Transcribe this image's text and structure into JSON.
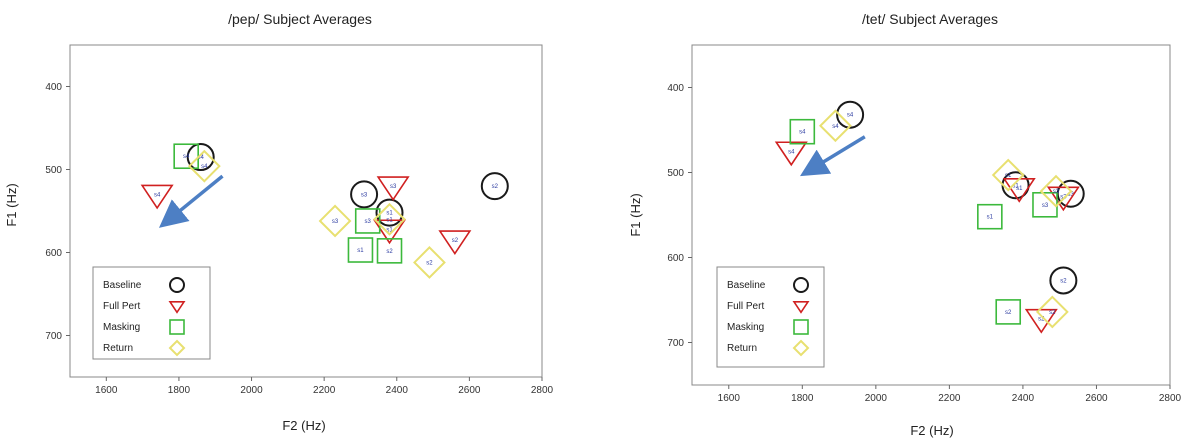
{
  "colors": {
    "baseline": "#1a1a1a",
    "full_pert": "#d02020",
    "masking": "#3cb93c",
    "return": "#e8e070",
    "arrow": "#4d7fc4",
    "label_text": "#2a3aa0"
  },
  "chart_data": [
    {
      "type": "scatter",
      "title": "/pep/ Subject Averages",
      "xlabel": "F2 (Hz)",
      "ylabel": "F1 (Hz)",
      "xlim": [
        1500,
        2800
      ],
      "ylim": [
        750,
        350
      ],
      "y_inverted": true,
      "xticks": [
        1600,
        1800,
        2000,
        2200,
        2400,
        2600,
        2800
      ],
      "yticks": [
        400,
        500,
        600,
        700
      ],
      "grid": false,
      "legend_position": "bottom-left",
      "arrow": {
        "from": [
          1920,
          508
        ],
        "to": [
          1760,
          565
        ]
      },
      "series": [
        {
          "name": "Baseline",
          "marker": "circle",
          "points": [
            {
              "x": 1860,
              "y": 485,
              "label": "s4"
            },
            {
              "x": 2310,
              "y": 530,
              "label": "s3"
            },
            {
              "x": 2380,
              "y": 552,
              "label": "s1"
            },
            {
              "x": 2670,
              "y": 520,
              "label": "s2"
            }
          ]
        },
        {
          "name": "Full Pert",
          "marker": "triangle-down",
          "points": [
            {
              "x": 1740,
              "y": 530,
              "label": "s4"
            },
            {
              "x": 2390,
              "y": 520,
              "label": "s3"
            },
            {
              "x": 2380,
              "y": 572,
              "label": "s1"
            },
            {
              "x": 2560,
              "y": 585,
              "label": "s2"
            }
          ]
        },
        {
          "name": "Masking",
          "marker": "square",
          "points": [
            {
              "x": 1820,
              "y": 484,
              "label": "s4"
            },
            {
              "x": 2320,
              "y": 562,
              "label": "s3"
            },
            {
              "x": 2300,
              "y": 597,
              "label": "s1"
            },
            {
              "x": 2380,
              "y": 598,
              "label": "s2"
            }
          ]
        },
        {
          "name": "Return",
          "marker": "diamond",
          "points": [
            {
              "x": 1870,
              "y": 496,
              "label": "s4"
            },
            {
              "x": 2230,
              "y": 562,
              "label": "s3"
            },
            {
              "x": 2380,
              "y": 560,
              "label": "s1"
            },
            {
              "x": 2490,
              "y": 612,
              "label": "s2"
            }
          ]
        }
      ]
    },
    {
      "type": "scatter",
      "title": "/tet/ Subject Averages",
      "xlabel": "F2 (Hz)",
      "ylabel": "F1 (Hz)",
      "xlim": [
        1500,
        2800
      ],
      "ylim": [
        750,
        350
      ],
      "y_inverted": true,
      "xticks": [
        1600,
        1800,
        2000,
        2200,
        2400,
        2600,
        2800
      ],
      "yticks": [
        400,
        500,
        600,
        700
      ],
      "grid": false,
      "legend_position": "bottom-left",
      "arrow": {
        "from": [
          1970,
          458
        ],
        "to": [
          1810,
          500
        ]
      },
      "series": [
        {
          "name": "Baseline",
          "marker": "circle",
          "points": [
            {
              "x": 1930,
              "y": 432,
              "label": "s4"
            },
            {
              "x": 2380,
              "y": 515,
              "label": "s1"
            },
            {
              "x": 2530,
              "y": 525,
              "label": "s3"
            },
            {
              "x": 2510,
              "y": 627,
              "label": "s2"
            }
          ]
        },
        {
          "name": "Full Pert",
          "marker": "triangle-down",
          "points": [
            {
              "x": 1770,
              "y": 475,
              "label": "s4"
            },
            {
              "x": 2390,
              "y": 518,
              "label": "s1"
            },
            {
              "x": 2510,
              "y": 528,
              "label": "s3"
            },
            {
              "x": 2450,
              "y": 672,
              "label": "s2"
            }
          ]
        },
        {
          "name": "Masking",
          "marker": "square",
          "points": [
            {
              "x": 1800,
              "y": 452,
              "label": "s4"
            },
            {
              "x": 2310,
              "y": 552,
              "label": "s1"
            },
            {
              "x": 2460,
              "y": 538,
              "label": "s3"
            },
            {
              "x": 2360,
              "y": 664,
              "label": "s2"
            }
          ]
        },
        {
          "name": "Return",
          "marker": "diamond",
          "points": [
            {
              "x": 1890,
              "y": 445,
              "label": "s4"
            },
            {
              "x": 2360,
              "y": 503,
              "label": "s1"
            },
            {
              "x": 2490,
              "y": 522,
              "label": "s3"
            },
            {
              "x": 2480,
              "y": 664,
              "label": "s2"
            }
          ]
        }
      ]
    }
  ]
}
